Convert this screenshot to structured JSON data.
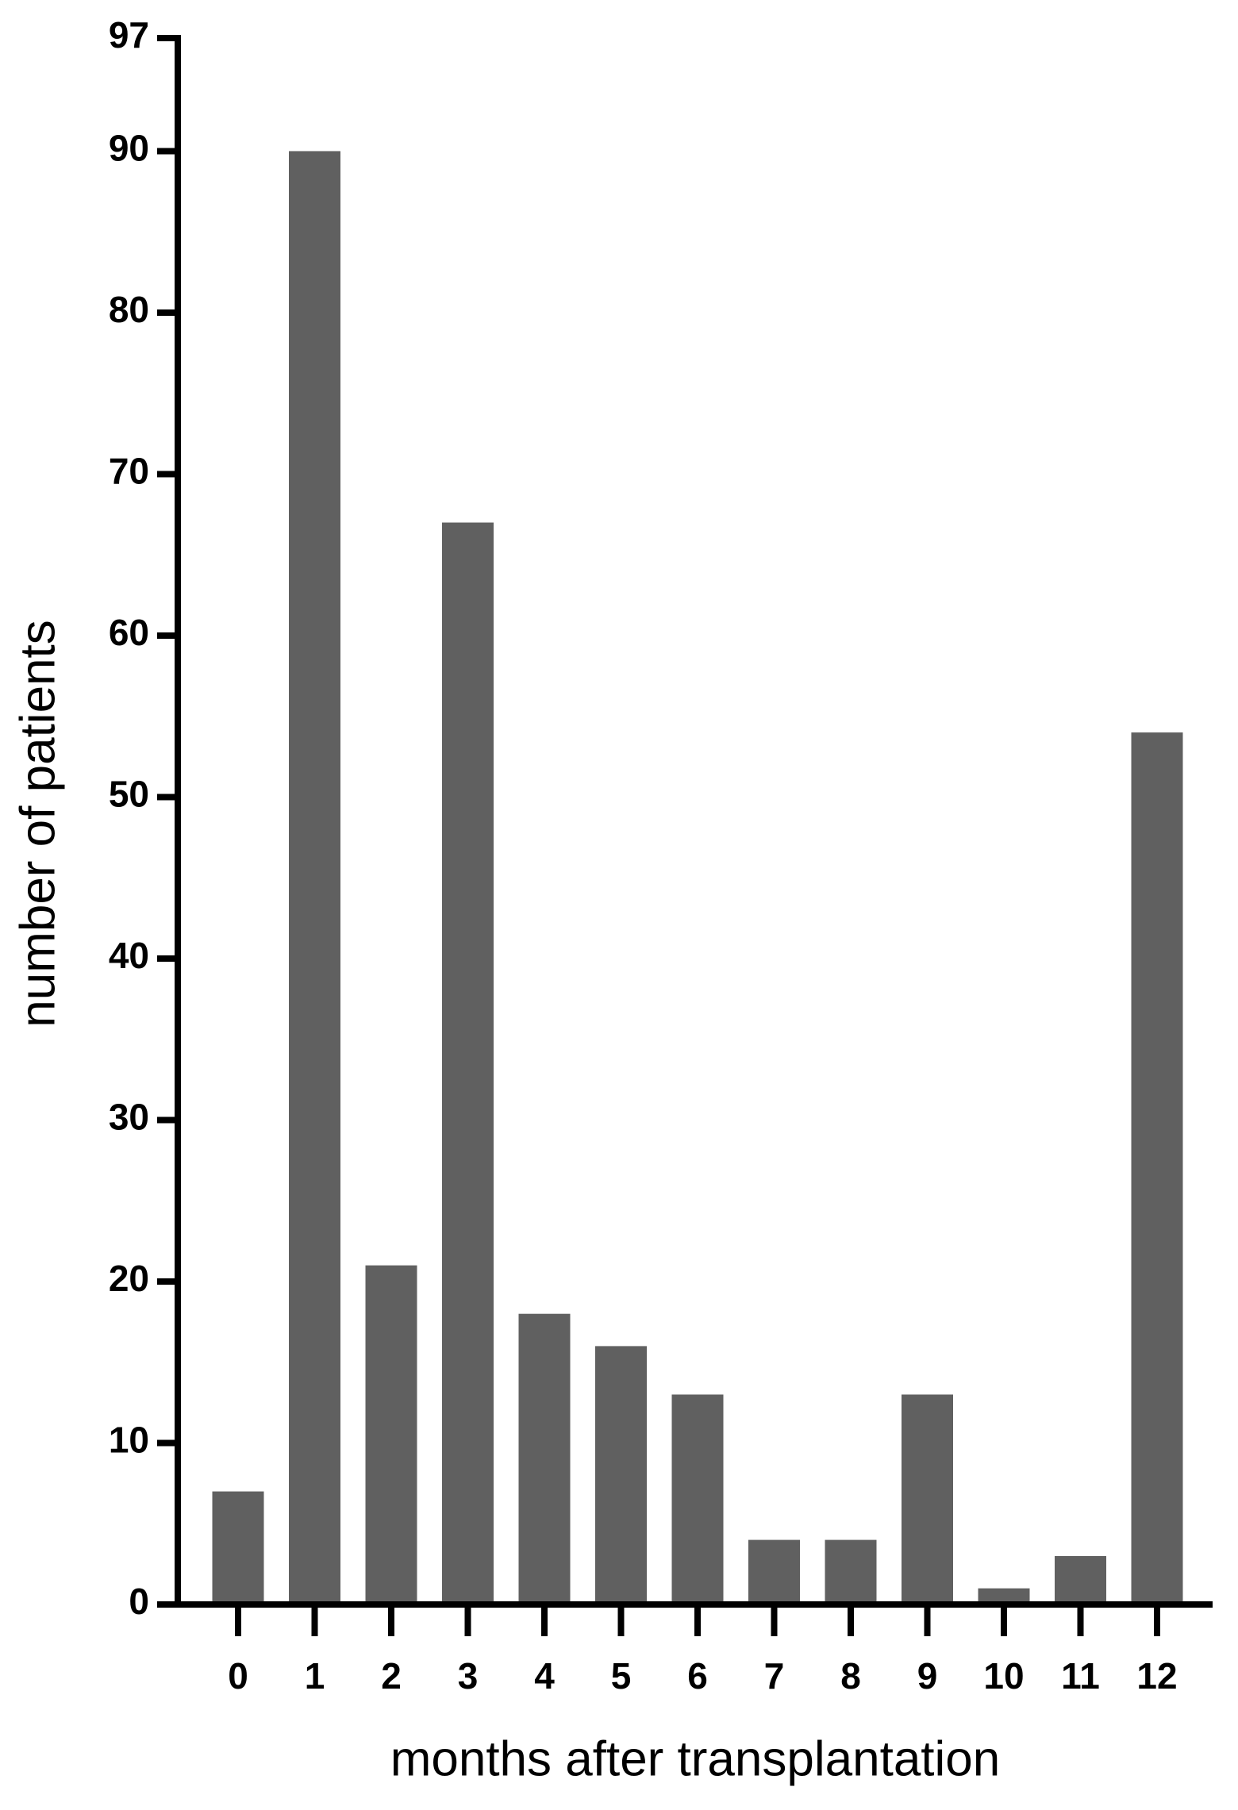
{
  "chart_data": {
    "type": "bar",
    "x_label": "months after transplantation",
    "y_label": "number of patients",
    "categories": [
      "0",
      "1",
      "2",
      "3",
      "4",
      "5",
      "6",
      "7",
      "8",
      "9",
      "10",
      "11",
      "12"
    ],
    "values": [
      7,
      90,
      21,
      67,
      18,
      16,
      13,
      4,
      4,
      13,
      1,
      3,
      54
    ],
    "color": "#606060",
    "ylim": [
      0,
      97
    ],
    "yticks": [
      0,
      10,
      20,
      30,
      40,
      50,
      60,
      70,
      80,
      90,
      97
    ],
    "grid": false
  }
}
